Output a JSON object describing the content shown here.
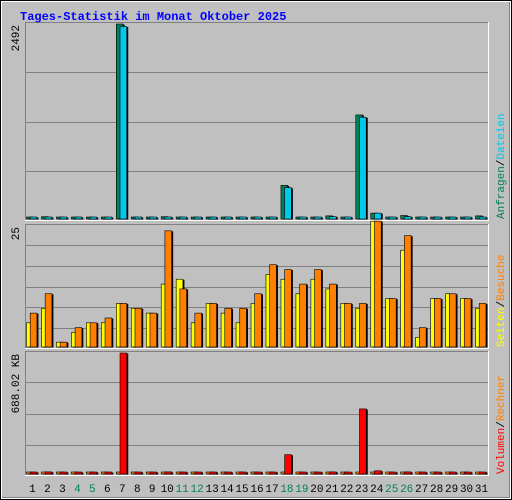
{
  "chart_data": [
    {
      "type": "bar",
      "title": "Tages-Statistik im Monat Oktober 2025",
      "categories": [
        "1",
        "2",
        "3",
        "4",
        "5",
        "6",
        "7",
        "8",
        "9",
        "10",
        "11",
        "12",
        "13",
        "14",
        "15",
        "16",
        "17",
        "18",
        "19",
        "20",
        "21",
        "22",
        "23",
        "24",
        "25",
        "26",
        "27",
        "28",
        "29",
        "30",
        "31"
      ],
      "weekend_days": [
        "4",
        "5",
        "11",
        "12",
        "18",
        "19",
        "25",
        "26"
      ],
      "ylabel_max": "2492",
      "ylim": [
        0,
        2492
      ],
      "right_axis_label": [
        "Anfragen",
        "/",
        "Dateien"
      ],
      "series": [
        {
          "name": "Anfragen",
          "color": "#00805c",
          "values": [
            7,
            30,
            7,
            7,
            7,
            20,
            2492,
            7,
            7,
            30,
            20,
            7,
            7,
            7,
            7,
            7,
            20,
            430,
            20,
            20,
            40,
            7,
            1330,
            75,
            20,
            45,
            7,
            7,
            7,
            7,
            40
          ]
        },
        {
          "name": "Dateien",
          "color": "#00c8e8",
          "values": [
            7,
            20,
            7,
            7,
            7,
            20,
            2460,
            7,
            7,
            20,
            20,
            7,
            7,
            7,
            7,
            7,
            20,
            400,
            20,
            20,
            30,
            7,
            1300,
            75,
            20,
            30,
            7,
            7,
            7,
            7,
            20
          ]
        }
      ]
    },
    {
      "type": "bar",
      "categories": [
        "1",
        "2",
        "3",
        "4",
        "5",
        "6",
        "7",
        "8",
        "9",
        "10",
        "11",
        "12",
        "13",
        "14",
        "15",
        "16",
        "17",
        "18",
        "19",
        "20",
        "21",
        "22",
        "23",
        "24",
        "25",
        "26",
        "27",
        "28",
        "29",
        "30",
        "31"
      ],
      "ylabel_max": "25",
      "ylim": [
        0,
        25
      ],
      "right_axis_label": [
        "Seiten",
        "/",
        "Besuche"
      ],
      "series": [
        {
          "name": "Seiten",
          "color": "#ffff00",
          "values": [
            5,
            8,
            1,
            3,
            5,
            5,
            9,
            8,
            7,
            13,
            14,
            5,
            9,
            7,
            5,
            9,
            15,
            14,
            11,
            14,
            12,
            9,
            8,
            26,
            10,
            20,
            2,
            10,
            11,
            10,
            8
          ]
        },
        {
          "name": "Besuche",
          "color": "#ff8000",
          "values": [
            7,
            11,
            1,
            4,
            5,
            6,
            9,
            8,
            7,
            24,
            12,
            7,
            9,
            8,
            8,
            11,
            17,
            16,
            13,
            16,
            13,
            9,
            9,
            26,
            10,
            23,
            4,
            10,
            11,
            10,
            9
          ]
        }
      ]
    },
    {
      "type": "bar",
      "categories": [
        "1",
        "2",
        "3",
        "4",
        "5",
        "6",
        "7",
        "8",
        "9",
        "10",
        "11",
        "12",
        "13",
        "14",
        "15",
        "16",
        "17",
        "18",
        "19",
        "20",
        "21",
        "22",
        "23",
        "24",
        "25",
        "26",
        "27",
        "28",
        "29",
        "30",
        "31"
      ],
      "ylabel_max": "688.02 KB",
      "ylim": [
        0,
        688.02
      ],
      "right_axis_label": [
        "Volumen",
        "/",
        "Rechner"
      ],
      "series": [
        {
          "name": "Rechner",
          "color": "#ff8000",
          "values": [
            0,
            0,
            0,
            0,
            0,
            0,
            0,
            0,
            0,
            0,
            0,
            0,
            0,
            0,
            0,
            0,
            0,
            0,
            0,
            0,
            0,
            0,
            0,
            0,
            0,
            0,
            0,
            0,
            0,
            0,
            0
          ]
        },
        {
          "name": "Volumen",
          "color": "#ff0000",
          "values": [
            0,
            12,
            0,
            0,
            0,
            0,
            688.02,
            0,
            0,
            12,
            0,
            0,
            0,
            0,
            0,
            0,
            0,
            110,
            0,
            0,
            12,
            0,
            370,
            18,
            0,
            12,
            0,
            0,
            0,
            0,
            0
          ]
        }
      ]
    }
  ]
}
